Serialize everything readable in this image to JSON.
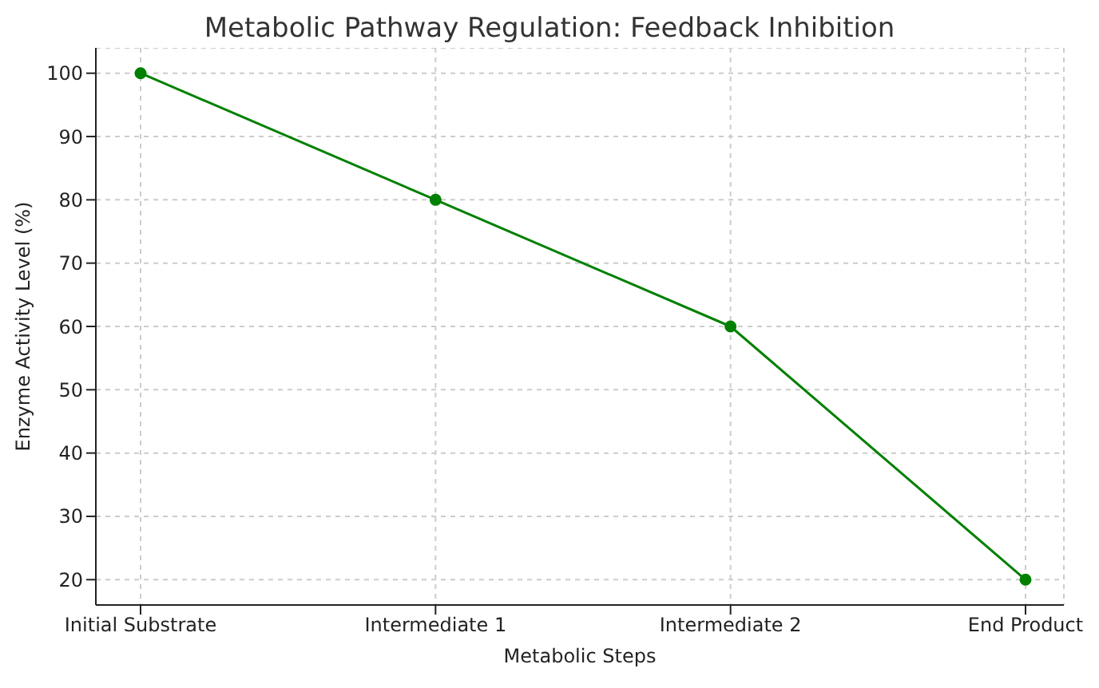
{
  "chart_data": {
    "type": "line",
    "title": "Metabolic Pathway Regulation: Feedback Inhibition",
    "xlabel": "Metabolic Steps",
    "ylabel": "Enzyme Activity Level (%)",
    "categories": [
      "Initial Substrate",
      "Intermediate 1",
      "Intermediate 2",
      "End Product"
    ],
    "series": [
      {
        "color": "#008000",
        "values": [
          100,
          80,
          60,
          20
        ]
      }
    ],
    "ylim": [
      16,
      104
    ],
    "yticks": [
      20,
      30,
      40,
      50,
      60,
      70,
      80,
      90,
      100
    ],
    "grid": true,
    "marker": "circle",
    "line_style": "solid",
    "legend": false
  }
}
